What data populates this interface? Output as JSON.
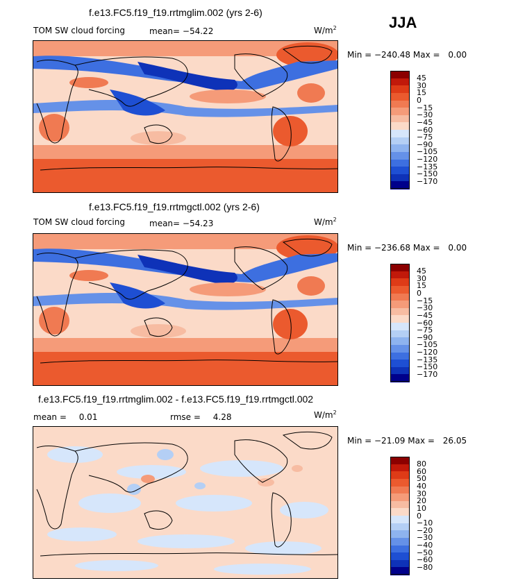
{
  "season": "JJA",
  "units_base": "W/m",
  "units_exp": "2",
  "palette": {
    "red9": "#8b0000",
    "red8": "#c1190a",
    "red7": "#de3b17",
    "red6": "#eb5a2e",
    "red5": "#f07a52",
    "red4": "#f59b79",
    "red3": "#f7bca2",
    "red2": "#fbdac8",
    "white": "#ffffff",
    "blue2": "#d6e6fb",
    "blue3": "#b4cff5",
    "blue4": "#8eb3ef",
    "blue5": "#6591e8",
    "blue6": "#3d6fe0",
    "blue7": "#1e4fd3",
    "blue8": "#0e32b8",
    "blue9": "#00008b"
  },
  "panels": [
    {
      "title": "f.e13.FC5.f19_f19.rrtmglim.002 (yrs 2-6)",
      "field": "TOM SW cloud forcing",
      "mean_label": "mean=",
      "mean_value": "−54.22",
      "min_label": "Min =",
      "min_value": "−240.48",
      "max_label": "Max =",
      "max_value": "0.00",
      "levels": [
        "45",
        "30",
        "15",
        "0",
        "−15",
        "−30",
        "−45",
        "−60",
        "−75",
        "−90",
        "−105",
        "−120",
        "−135",
        "−150",
        "−170"
      ]
    },
    {
      "title": "f.e13.FC5.f19_f19.rrtmgctl.002 (yrs 2-6)",
      "field": "TOM SW cloud forcing",
      "mean_label": "mean=",
      "mean_value": "−54.23",
      "min_label": "Min =",
      "min_value": "−236.68",
      "max_label": "Max =",
      "max_value": "0.00",
      "levels": [
        "45",
        "30",
        "15",
        "0",
        "−15",
        "−30",
        "−45",
        "−60",
        "−75",
        "−90",
        "−105",
        "−120",
        "−135",
        "−150",
        "−170"
      ]
    },
    {
      "title": "f.e13.FC5.f19_f19.rrtmglim.002 - f.e13.FC5.f19_f19.rrtmgctl.002",
      "mean_label": "mean =",
      "mean_value": "0.01",
      "rmse_label": "rmse =",
      "rmse_value": "4.28",
      "min_label": "Min =",
      "min_value": "−21.09",
      "max_label": "Max =",
      "max_value": "26.05",
      "levels": [
        "80",
        "60",
        "50",
        "40",
        "30",
        "20",
        "10",
        "0",
        "−10",
        "−20",
        "−30",
        "−40",
        "−50",
        "−60",
        "−80"
      ]
    }
  ]
}
